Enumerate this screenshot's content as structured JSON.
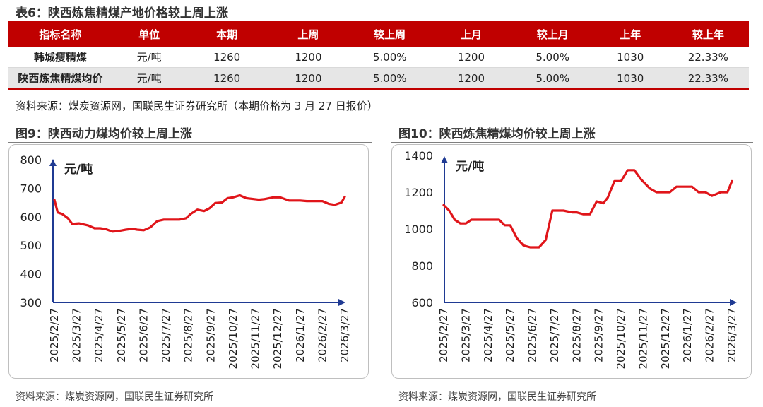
{
  "table6": {
    "title": "表6：陕西炼焦精煤产地价格较上周上涨",
    "headers": [
      "指标名称",
      "单位",
      "本期",
      "上周",
      "较上周",
      "上月",
      "较上月",
      "上年",
      "较上年"
    ],
    "rows": [
      [
        "韩城瘦精煤",
        "元/吨",
        "1260",
        "1200",
        "5.00%",
        "1200",
        "5.00%",
        "1030",
        "22.33%"
      ],
      [
        "陕西炼焦精煤均价",
        "元/吨",
        "1260",
        "1200",
        "5.00%",
        "1200",
        "5.00%",
        "1030",
        "22.33%"
      ]
    ],
    "source": "资料来源：煤炭资源网，国联民生证券研究所（本期价格为 3 月 27 日报价）"
  },
  "colors": {
    "header_red": "#c00000",
    "line_red": "#e0151a",
    "axis_blue": "#1f3a93"
  },
  "chart_data": [
    {
      "type": "line",
      "title": "图9：陕西动力煤均价较上周上涨",
      "ylabel": "元/吨",
      "ylim": [
        300,
        800
      ],
      "yticks": [
        300,
        400,
        500,
        600,
        700,
        800
      ],
      "xticks": [
        "2025/2/27",
        "2025/3/27",
        "2025/4/27",
        "2025/5/27",
        "2025/6/27",
        "2025/7/27",
        "2025/8/27",
        "2025/9/27",
        "2025/10/27",
        "2025/11/27",
        "2025/12/27",
        "2026/1/27",
        "2026/2/27",
        "2026/3/27"
      ],
      "grid": false,
      "series": [
        {
          "x": [
            0,
            0.15,
            0.35,
            0.6,
            0.8,
            1.1,
            1.5,
            1.8,
            2.05,
            2.3,
            2.6,
            2.85,
            3.0,
            3.2,
            3.5,
            3.7,
            4.0,
            4.3,
            4.6,
            4.9,
            5.2,
            5.45,
            5.6,
            5.9,
            6.1,
            6.4,
            6.7,
            6.95,
            7.2,
            7.5,
            7.75,
            8.0,
            8.3,
            8.6,
            8.95,
            9.15,
            9.4,
            9.8,
            10.1,
            10.5,
            10.8,
            11.0,
            11.3,
            11.7,
            12.0,
            12.3,
            12.55,
            12.85,
            13.0
          ],
          "y": [
            660,
            615,
            610,
            595,
            575,
            577,
            570,
            560,
            560,
            557,
            548,
            550,
            552,
            555,
            558,
            555,
            553,
            563,
            585,
            590,
            590,
            590,
            590,
            595,
            610,
            625,
            620,
            630,
            648,
            650,
            665,
            668,
            675,
            665,
            662,
            660,
            662,
            668,
            668,
            657,
            657,
            657,
            655,
            655,
            655,
            645,
            642,
            650,
            670
          ]
        }
      ],
      "source": "资料来源：煤炭资源网，国联民生证券研究所"
    },
    {
      "type": "line",
      "title": "图10：陕西炼焦精煤均价较上周上涨",
      "ylabel": "元/吨",
      "ylim": [
        600,
        1400
      ],
      "yticks": [
        600,
        800,
        1000,
        1200,
        1400
      ],
      "xticks": [
        "2025/2/27",
        "2025/3/27",
        "2025/4/27",
        "2025/5/27",
        "2025/6/27",
        "2025/7/27",
        "2025/8/27",
        "2025/9/27",
        "2025/10/27",
        "2025/11/27",
        "2025/12/27",
        "2026/1/27",
        "2026/2/27",
        "2026/3/27"
      ],
      "grid": false,
      "series": [
        {
          "x": [
            0,
            0.25,
            0.5,
            0.75,
            1.0,
            1.25,
            1.45,
            1.75,
            2.0,
            2.5,
            2.75,
            3.0,
            3.3,
            3.6,
            3.9,
            4.0,
            4.3,
            4.6,
            4.9,
            5.2,
            5.4,
            5.8,
            6.0,
            6.3,
            6.6,
            6.9,
            7.2,
            7.4,
            7.7,
            8.0,
            8.3,
            8.6,
            8.9,
            9.3,
            9.6,
            9.9,
            10.2,
            10.5,
            10.8,
            11.2,
            11.5,
            11.8,
            12.1,
            12.5,
            12.8,
            13.0
          ],
          "y": [
            1130,
            1100,
            1050,
            1030,
            1030,
            1050,
            1050,
            1050,
            1050,
            1050,
            1020,
            1020,
            950,
            910,
            900,
            900,
            900,
            940,
            1100,
            1100,
            1100,
            1090,
            1090,
            1080,
            1080,
            1150,
            1140,
            1170,
            1260,
            1260,
            1320,
            1320,
            1270,
            1220,
            1200,
            1200,
            1200,
            1230,
            1230,
            1230,
            1200,
            1200,
            1180,
            1200,
            1200,
            1260
          ]
        }
      ],
      "source": "资料来源：煤炭资源网，国联民生证券研究所"
    }
  ]
}
